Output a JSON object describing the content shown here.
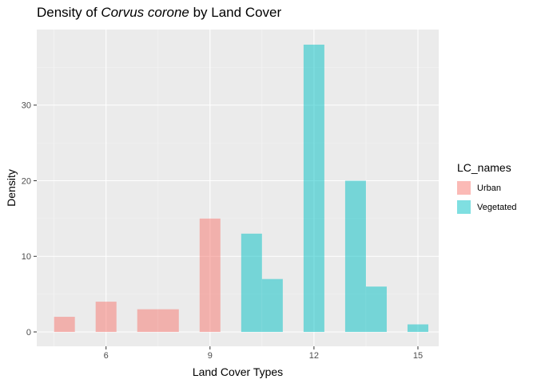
{
  "title_prefix": "Density of ",
  "title_species": "Corvus corone",
  "title_suffix": " by Land Cover",
  "chart_data": {
    "type": "bar",
    "title": "Density of Corvus corone by Land Cover",
    "xlabel": "Land Cover Types",
    "ylabel": "Density",
    "xlim": [
      4.0,
      15.6
    ],
    "ylim": [
      -1.9,
      40
    ],
    "x_ticks": [
      6,
      9,
      12,
      15
    ],
    "y_ticks": [
      0,
      10,
      20,
      30
    ],
    "grid": true,
    "legend_title": "LC_names",
    "legend_position": "right",
    "series": [
      {
        "name": "Urban",
        "color": "#F8766D",
        "bars": [
          {
            "x0": 4.5,
            "x1": 5.1,
            "value": 2
          },
          {
            "x0": 5.7,
            "x1": 6.3,
            "value": 4
          },
          {
            "x0": 6.9,
            "x1": 7.5,
            "value": 3
          },
          {
            "x0": 7.5,
            "x1": 8.1,
            "value": 3
          },
          {
            "x0": 8.7,
            "x1": 9.3,
            "value": 15
          }
        ]
      },
      {
        "name": "Vegetated",
        "color": "#00BFC4",
        "bars": [
          {
            "x0": 9.9,
            "x1": 10.5,
            "value": 13
          },
          {
            "x0": 10.5,
            "x1": 11.1,
            "value": 7
          },
          {
            "x0": 11.7,
            "x1": 12.3,
            "value": 38
          },
          {
            "x0": 12.9,
            "x1": 13.5,
            "value": 20
          },
          {
            "x0": 13.5,
            "x1": 14.1,
            "value": 6
          },
          {
            "x0": 14.7,
            "x1": 15.3,
            "value": 1
          }
        ]
      }
    ]
  }
}
